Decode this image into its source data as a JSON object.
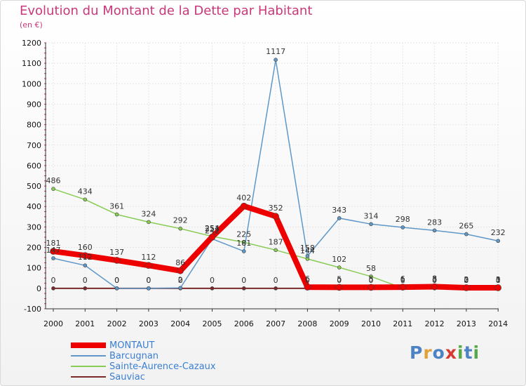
{
  "title": "Evolution du Montant de la Dette par Habitant",
  "subtitle": "(en €)",
  "logo": {
    "letters": [
      "P",
      "r",
      "o",
      "x",
      "i",
      "t",
      "i"
    ],
    "colors": [
      "#4d82c4",
      "#e2a23b",
      "#4d82c4",
      "#d93a30",
      "#55aa45",
      "#4d82c4",
      "#55aa45"
    ]
  },
  "chart_data": {
    "type": "line",
    "title": "Evolution du Montant de la Dette par Habitant",
    "ylabel": "(en €)",
    "ylim": [
      -100,
      1200
    ],
    "yticks": [
      -100,
      0,
      100,
      200,
      300,
      400,
      500,
      600,
      700,
      800,
      900,
      1000,
      1100,
      1200
    ],
    "x": [
      "2000",
      "2001",
      "2002",
      "2003",
      "2004",
      "2005",
      "2006",
      "2007",
      "2008",
      "2009",
      "2010",
      "2011",
      "2012",
      "2013",
      "2014"
    ],
    "series": [
      {
        "name": "Sauviac",
        "color": "#7a2a2a",
        "width": 2,
        "marker": 5,
        "values": [
          0,
          0,
          0,
          0,
          0,
          0,
          0,
          0,
          0,
          0,
          0,
          0,
          0,
          0,
          0
        ],
        "labels": [
          "0",
          "0",
          "0",
          "0",
          "0",
          "0",
          "0",
          "0",
          "0",
          "0",
          "0",
          "0",
          "0",
          "0",
          "0"
        ]
      },
      {
        "name": "Sainte-Aurence-Cazaux",
        "color": "#88cc55",
        "width": 1.5,
        "marker": 5,
        "values": [
          486,
          434,
          361,
          324,
          292,
          254,
          225,
          187,
          144,
          102,
          58,
          1,
          3,
          2,
          1
        ],
        "labels": [
          "486",
          "434",
          "361",
          "324",
          "292",
          "254",
          "225",
          "187",
          "144",
          "102",
          "58",
          "1",
          "3",
          "2",
          "1"
        ]
      },
      {
        "name": "Barcugnan",
        "color": "#5f98c8",
        "width": 1.5,
        "marker": 5,
        "values": [
          147,
          112,
          0,
          0,
          2,
          242,
          181,
          1117,
          158,
          343,
          314,
          298,
          283,
          265,
          232
        ],
        "labels": [
          "147",
          "112",
          "0",
          "0",
          "2",
          "242",
          "181",
          "1117",
          "158",
          "343",
          "314",
          "298",
          "283",
          "265",
          "232"
        ]
      },
      {
        "name": "MONTAUT",
        "color": "#ee0000",
        "width": 8,
        "marker": 9,
        "values": [
          181,
          160,
          137,
          112,
          86,
          251,
          402,
          352,
          6,
          5,
          5,
          6,
          8,
          3,
          3
        ],
        "labels": [
          "181",
          "160",
          "137",
          "112",
          "86",
          "251",
          "402",
          "352",
          "6",
          "5",
          "5",
          "6",
          "8",
          "3",
          "3"
        ]
      }
    ],
    "legend": [
      "MONTAUT",
      "Barcugnan",
      "Sainte-Aurence-Cazaux",
      "Sauviac"
    ]
  }
}
